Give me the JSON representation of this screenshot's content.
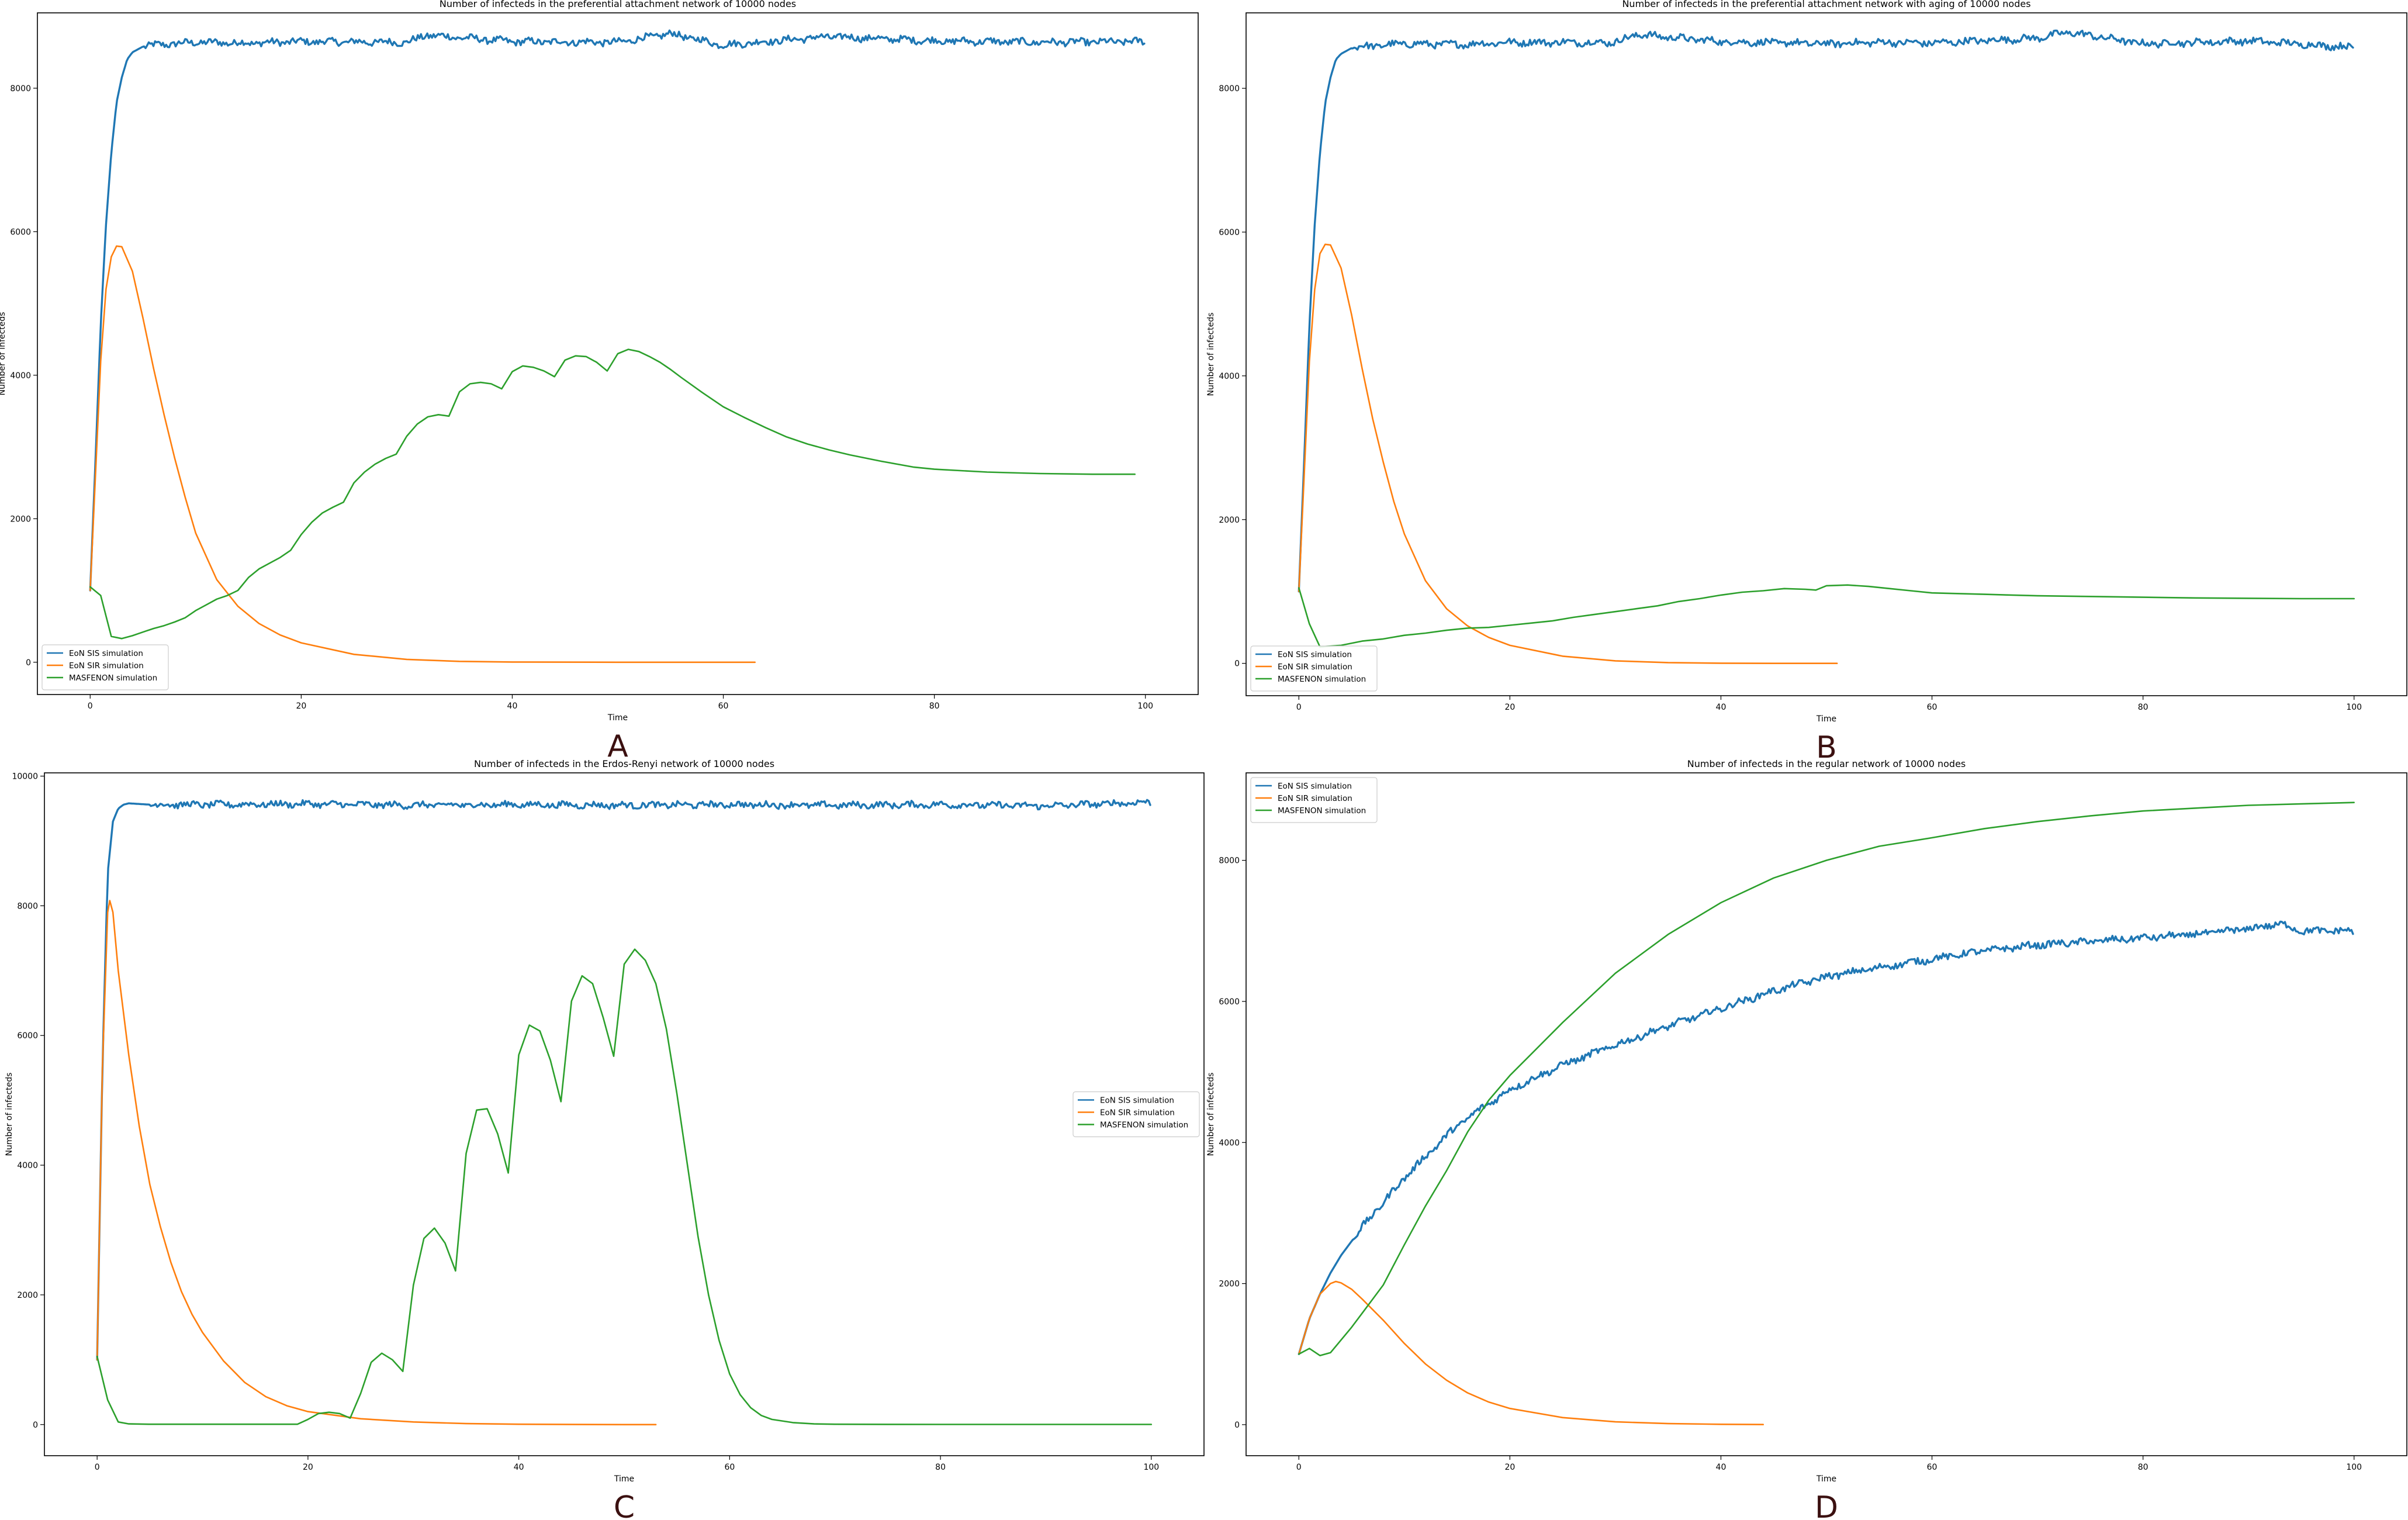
{
  "figure": {
    "panel_letter_color": "#3b1010",
    "series_colors": {
      "EoN SIS simulation": "#1f77b4",
      "EoN SIR simulation": "#ff7f0e",
      "MASFENON simulation": "#2ca02c"
    }
  },
  "chart_data": [
    {
      "panel": "A",
      "type": "line",
      "title": "Number of infecteds in the preferential attachment network of 10000 nodes",
      "xlabel": "Time",
      "ylabel": "Number of infecteds",
      "xlim": [
        -5,
        105
      ],
      "ylim": [
        -450,
        9050
      ],
      "xticks": [
        0,
        20,
        40,
        60,
        80,
        100
      ],
      "yticks": [
        0,
        2000,
        4000,
        6000,
        8000
      ],
      "grid": false,
      "legend": "lower-left",
      "series": [
        {
          "name": "EoN SIS simulation",
          "color": "#1f77b4",
          "noisy": true,
          "x": [
            0,
            0.5,
            1,
            1.5,
            2,
            2.5,
            3,
            3.5,
            4,
            5,
            6,
            8,
            10,
            15,
            20,
            30,
            32,
            40,
            50,
            55,
            60,
            70,
            80,
            90,
            100
          ],
          "y": [
            1000,
            2800,
            4700,
            6100,
            7100,
            7800,
            8150,
            8400,
            8500,
            8580,
            8600,
            8620,
            8640,
            8630,
            8650,
            8640,
            8740,
            8650,
            8640,
            8760,
            8600,
            8720,
            8660,
            8640,
            8650
          ]
        },
        {
          "name": "EoN SIR simulation",
          "color": "#ff7f0e",
          "x": [
            0,
            0.5,
            1,
            1.5,
            2,
            2.5,
            3,
            4,
            5,
            6,
            7,
            8,
            9,
            10,
            12,
            14,
            16,
            18,
            20,
            25,
            30,
            35,
            40,
            50,
            63
          ],
          "y": [
            1000,
            2600,
            4200,
            5200,
            5650,
            5800,
            5790,
            5450,
            4800,
            4100,
            3450,
            2850,
            2300,
            1800,
            1150,
            780,
            540,
            380,
            270,
            110,
            40,
            12,
            3,
            0,
            0
          ]
        },
        {
          "name": "MASFENON simulation",
          "color": "#2ca02c",
          "x": [
            0,
            1,
            2,
            3,
            4,
            5,
            6,
            7,
            8,
            9,
            10,
            11,
            12,
            13,
            14,
            15,
            16,
            17,
            18,
            19,
            20,
            21,
            22,
            23,
            24,
            25,
            26,
            27,
            28,
            29,
            30,
            31,
            32,
            33,
            34,
            35,
            36,
            37,
            38,
            39,
            40,
            41,
            42,
            43,
            44,
            45,
            46,
            47,
            48,
            49,
            50,
            51,
            52,
            53,
            54,
            55,
            56,
            58,
            60,
            62,
            64,
            66,
            68,
            70,
            72,
            75,
            78,
            80,
            85,
            90,
            95,
            99
          ],
          "y": [
            1050,
            930,
            360,
            330,
            370,
            420,
            470,
            510,
            560,
            620,
            720,
            800,
            880,
            930,
            1000,
            1180,
            1300,
            1380,
            1460,
            1560,
            1780,
            1950,
            2080,
            2160,
            2230,
            2500,
            2650,
            2760,
            2840,
            2900,
            3150,
            3320,
            3420,
            3450,
            3430,
            3770,
            3880,
            3900,
            3880,
            3810,
            4050,
            4130,
            4110,
            4060,
            3980,
            4210,
            4270,
            4260,
            4180,
            4060,
            4300,
            4360,
            4330,
            4260,
            4180,
            4080,
            3970,
            3760,
            3560,
            3410,
            3270,
            3140,
            3040,
            2960,
            2890,
            2800,
            2720,
            2690,
            2650,
            2630,
            2620,
            2620
          ]
        }
      ]
    },
    {
      "panel": "B",
      "type": "line",
      "title": "Number of infecteds in the preferential attachment network with aging of 10000 nodes",
      "xlabel": "Time",
      "ylabel": "Number of infecteds",
      "xlim": [
        -5,
        105
      ],
      "ylim": [
        -450,
        9050
      ],
      "xticks": [
        0,
        20,
        40,
        60,
        80,
        100
      ],
      "yticks": [
        0,
        2000,
        4000,
        6000,
        8000
      ],
      "grid": false,
      "legend": "lower-left",
      "series": [
        {
          "name": "EoN SIS simulation",
          "color": "#1f77b4",
          "noisy": true,
          "x": [
            0,
            0.5,
            1,
            1.5,
            2,
            2.5,
            3,
            3.5,
            4,
            5,
            6,
            8,
            10,
            15,
            20,
            30,
            32,
            40,
            50,
            55,
            60,
            70,
            73,
            80,
            90,
            100
          ],
          "y": [
            1000,
            2800,
            4700,
            6100,
            7100,
            7800,
            8150,
            8400,
            8480,
            8560,
            8580,
            8600,
            8620,
            8610,
            8640,
            8640,
            8750,
            8650,
            8620,
            8640,
            8630,
            8700,
            8780,
            8620,
            8660,
            8570
          ]
        },
        {
          "name": "EoN SIR simulation",
          "color": "#ff7f0e",
          "x": [
            0,
            0.5,
            1,
            1.5,
            2,
            2.5,
            3,
            4,
            5,
            6,
            7,
            8,
            9,
            10,
            12,
            14,
            16,
            18,
            20,
            25,
            30,
            35,
            40,
            45,
            51
          ],
          "y": [
            1000,
            2600,
            4200,
            5200,
            5700,
            5830,
            5820,
            5500,
            4850,
            4100,
            3400,
            2800,
            2250,
            1800,
            1150,
            760,
            520,
            360,
            250,
            100,
            35,
            10,
            2,
            0,
            0
          ]
        },
        {
          "name": "MASFENON simulation",
          "color": "#2ca02c",
          "x": [
            0,
            1,
            2,
            4,
            6,
            8,
            10,
            12,
            14,
            16,
            18,
            20,
            22,
            24,
            26,
            28,
            30,
            32,
            34,
            36,
            38,
            40,
            42,
            44,
            46,
            48,
            49,
            50,
            52,
            54,
            56,
            58,
            60,
            65,
            70,
            75,
            80,
            85,
            90,
            95,
            100
          ],
          "y": [
            1050,
            550,
            230,
            250,
            310,
            340,
            390,
            420,
            460,
            490,
            500,
            530,
            560,
            590,
            640,
            680,
            720,
            760,
            800,
            860,
            900,
            950,
            990,
            1010,
            1040,
            1030,
            1020,
            1080,
            1090,
            1070,
            1040,
            1010,
            980,
            960,
            940,
            930,
            920,
            910,
            905,
            900,
            900
          ]
        }
      ]
    },
    {
      "panel": "C",
      "type": "line",
      "title": "Number of infecteds in the Erdos-Renyi network of 10000 nodes",
      "xlabel": "Time",
      "ylabel": "Number of infecteds",
      "xlim": [
        -5,
        105
      ],
      "ylim": [
        -480,
        10050
      ],
      "xticks": [
        0,
        20,
        40,
        60,
        80,
        100
      ],
      "yticks": [
        0,
        2000,
        4000,
        6000,
        8000,
        10000
      ],
      "grid": false,
      "legend": "center-right",
      "series": [
        {
          "name": "EoN SIS simulation",
          "color": "#1f77b4",
          "noisy": true,
          "x": [
            0,
            0.5,
            1,
            1.5,
            2,
            2.5,
            3,
            4,
            5,
            10,
            20,
            30,
            40,
            50,
            60,
            70,
            80,
            90,
            100
          ],
          "y": [
            1000,
            5500,
            8500,
            9300,
            9500,
            9560,
            9580,
            9570,
            9560,
            9560,
            9570,
            9550,
            9560,
            9550,
            9560,
            9550,
            9560,
            9540,
            9600
          ]
        },
        {
          "name": "EoN SIR simulation",
          "color": "#ff7f0e",
          "x": [
            0,
            0.5,
            1,
            1.2,
            1.5,
            2,
            3,
            4,
            5,
            6,
            7,
            8,
            9,
            10,
            12,
            14,
            16,
            18,
            20,
            25,
            30,
            35,
            40,
            45,
            50,
            53
          ],
          "y": [
            1000,
            5500,
            7900,
            8080,
            7900,
            7000,
            5700,
            4600,
            3700,
            3050,
            2500,
            2050,
            1700,
            1420,
            980,
            650,
            430,
            290,
            200,
            90,
            40,
            15,
            5,
            1,
            0,
            0
          ]
        },
        {
          "name": "MASFENON simulation",
          "color": "#2ca02c",
          "x": [
            0,
            1,
            2,
            3,
            5,
            10,
            15,
            19,
            20,
            21,
            22,
            23,
            24,
            25,
            26,
            27,
            28,
            29,
            30,
            31,
            32,
            33,
            34,
            35,
            36,
            37,
            38,
            39,
            40,
            41,
            42,
            43,
            44,
            45,
            46,
            47,
            48,
            49,
            50,
            51,
            52,
            53,
            54,
            55,
            56,
            57,
            58,
            59,
            60,
            61,
            62,
            63,
            64,
            66,
            68,
            70,
            75,
            80,
            90,
            100
          ],
          "y": [
            1050,
            380,
            40,
            10,
            5,
            5,
            5,
            5,
            80,
            170,
            190,
            170,
            100,
            480,
            960,
            1100,
            1000,
            820,
            2150,
            2870,
            3030,
            2800,
            2370,
            4180,
            4850,
            4870,
            4480,
            3880,
            5700,
            6160,
            6070,
            5620,
            4980,
            6530,
            6920,
            6800,
            6280,
            5680,
            7100,
            7330,
            7160,
            6800,
            6100,
            5100,
            4000,
            2900,
            2000,
            1300,
            780,
            460,
            260,
            140,
            80,
            30,
            10,
            5,
            3,
            2,
            2,
            2
          ]
        }
      ]
    },
    {
      "panel": "D",
      "type": "line",
      "title": "Number of infecteds in the regular network of 10000 nodes",
      "xlabel": "Time",
      "ylabel": "Number of infecteds",
      "xlim": [
        -5,
        105
      ],
      "ylim": [
        -440,
        9240
      ],
      "xticks": [
        0,
        20,
        40,
        60,
        80,
        100
      ],
      "yticks": [
        0,
        2000,
        4000,
        6000,
        8000
      ],
      "grid": false,
      "legend": "upper-left",
      "series": [
        {
          "name": "EoN SIS simulation",
          "color": "#1f77b4",
          "noisy": true,
          "x": [
            0,
            1,
            2,
            3,
            4,
            5,
            6,
            8,
            10,
            12,
            14,
            16,
            18,
            20,
            25,
            30,
            35,
            40,
            45,
            50,
            55,
            60,
            65,
            70,
            75,
            80,
            85,
            90,
            93,
            95,
            100
          ],
          "y": [
            1000,
            1500,
            1850,
            2150,
            2400,
            2600,
            2800,
            3150,
            3500,
            3800,
            4100,
            4350,
            4550,
            4750,
            5100,
            5380,
            5650,
            5900,
            6150,
            6350,
            6480,
            6600,
            6720,
            6800,
            6850,
            6900,
            6950,
            7030,
            7100,
            7000,
            7000
          ]
        },
        {
          "name": "EoN SIR simulation",
          "color": "#ff7f0e",
          "x": [
            0,
            1,
            2,
            3,
            3.5,
            4,
            5,
            6,
            8,
            10,
            12,
            14,
            16,
            18,
            20,
            25,
            30,
            35,
            40,
            44
          ],
          "y": [
            1000,
            1500,
            1850,
            2000,
            2030,
            2010,
            1920,
            1780,
            1480,
            1150,
            860,
            630,
            450,
            320,
            230,
            100,
            40,
            15,
            5,
            2
          ]
        },
        {
          "name": "MASFENON simulation",
          "color": "#2ca02c",
          "x": [
            0,
            1,
            2,
            3,
            4,
            5,
            6,
            7,
            8,
            10,
            12,
            14,
            16,
            18,
            20,
            22,
            25,
            30,
            35,
            40,
            45,
            50,
            55,
            60,
            65,
            70,
            75,
            80,
            85,
            90,
            95,
            100
          ],
          "y": [
            1000,
            1080,
            980,
            1020,
            1200,
            1380,
            1580,
            1780,
            1980,
            2550,
            3100,
            3600,
            4150,
            4600,
            4950,
            5250,
            5700,
            6400,
            6950,
            7400,
            7750,
            8000,
            8200,
            8320,
            8450,
            8550,
            8630,
            8700,
            8740,
            8780,
            8800,
            8820
          ]
        }
      ]
    }
  ]
}
